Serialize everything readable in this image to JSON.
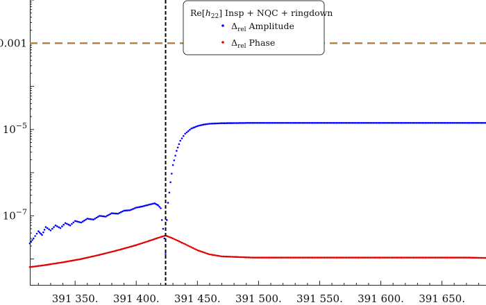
{
  "chart_data": {
    "type": "scatter",
    "y_scale": "log",
    "xlim": [
      391313,
      391686
    ],
    "ylim_exponent": [
      -8.6,
      -2.0
    ],
    "x_ticks": [
      {
        "value": 391350,
        "label": "391 350."
      },
      {
        "value": 391400,
        "label": "391 400."
      },
      {
        "value": 391450,
        "label": "391 450."
      },
      {
        "value": 391500,
        "label": "391 500."
      },
      {
        "value": 391550,
        "label": "391 550."
      },
      {
        "value": 391600,
        "label": "391 600."
      },
      {
        "value": 391650,
        "label": "391 650."
      }
    ],
    "y_ticks": [
      {
        "value": 0.001,
        "label_base": "0.001",
        "label_exp": ""
      },
      {
        "value": 1e-05,
        "label_base": "10",
        "label_exp": "−5"
      },
      {
        "value": 1e-07,
        "label_base": "10",
        "label_exp": "−7"
      }
    ],
    "reference_line": {
      "y": 0.001,
      "color": "#b07d3e",
      "style": "dashed"
    },
    "vertical_line": {
      "x": 391424,
      "color": "#000000",
      "style": "dashed"
    },
    "legend": {
      "title_prefix": "Re[",
      "title_h": "h",
      "title_sub": "22",
      "title_suffix": "]  Insp + NQC + ringdown",
      "placement": "top-center"
    },
    "series": [
      {
        "name_prefix": "Δ",
        "name_sub": "rel",
        "name_suffix": " Amplitude",
        "color": "#0000ff",
        "points": [
          [
            391313,
            2.3e-08
          ],
          [
            391316,
            3e-08
          ],
          [
            391320,
            4.4e-08
          ],
          [
            391323,
            3.6e-08
          ],
          [
            391326,
            5.5e-08
          ],
          [
            391330,
            4.6e-08
          ],
          [
            391334,
            6e-08
          ],
          [
            391338,
            5.2e-08
          ],
          [
            391342,
            6.8e-08
          ],
          [
            391346,
            6e-08
          ],
          [
            391350,
            7.6e-08
          ],
          [
            391355,
            7e-08
          ],
          [
            391360,
            8.6e-08
          ],
          [
            391365,
            8.2e-08
          ],
          [
            391370,
            1e-07
          ],
          [
            391375,
            9.6e-08
          ],
          [
            391380,
            1.15e-07
          ],
          [
            391385,
            1.12e-07
          ],
          [
            391390,
            1.32e-07
          ],
          [
            391395,
            1.35e-07
          ],
          [
            391400,
            1.55e-07
          ],
          [
            391405,
            1.65e-07
          ],
          [
            391410,
            1.8e-07
          ],
          [
            391415,
            1.95e-07
          ],
          [
            391418,
            1.75e-07
          ],
          [
            391420,
            1.5e-07
          ],
          [
            391421,
            8e-08
          ],
          [
            391422,
            5e-08
          ],
          [
            391423,
            3e-08
          ],
          [
            391424,
            1.3e-08
          ],
          [
            391425,
            8e-08
          ],
          [
            391426,
            2e-07
          ],
          [
            391428,
            6e-07
          ],
          [
            391430,
            1.5e-06
          ],
          [
            391433,
            3.2e-06
          ],
          [
            391436,
            5.5e-06
          ],
          [
            391440,
            8e-06
          ],
          [
            391445,
            1.05e-05
          ],
          [
            391450,
            1.2e-05
          ],
          [
            391455,
            1.3e-05
          ],
          [
            391460,
            1.36e-05
          ],
          [
            391470,
            1.4e-05
          ],
          [
            391490,
            1.42e-05
          ],
          [
            391520,
            1.42e-05
          ],
          [
            391560,
            1.42e-05
          ],
          [
            391600,
            1.42e-05
          ],
          [
            391640,
            1.42e-05
          ],
          [
            391686,
            1.42e-05
          ]
        ]
      },
      {
        "name_prefix": "Δ",
        "name_sub": "rel",
        "name_suffix": " Phase",
        "color": "#e00000",
        "points": [
          [
            391313,
            6.5e-09
          ],
          [
            391325,
            7.2e-09
          ],
          [
            391340,
            8.4e-09
          ],
          [
            391355,
            1e-08
          ],
          [
            391370,
            1.25e-08
          ],
          [
            391385,
            1.6e-08
          ],
          [
            391400,
            2.1e-08
          ],
          [
            391410,
            2.6e-08
          ],
          [
            391418,
            3.1e-08
          ],
          [
            391424,
            3.5e-08
          ],
          [
            391430,
            3e-08
          ],
          [
            391440,
            2.2e-08
          ],
          [
            391450,
            1.6e-08
          ],
          [
            391460,
            1.28e-08
          ],
          [
            391470,
            1.15e-08
          ],
          [
            391480,
            1.12e-08
          ],
          [
            391495,
            1.08e-08
          ],
          [
            391520,
            1.08e-08
          ],
          [
            391560,
            1.08e-08
          ],
          [
            391600,
            1.08e-08
          ],
          [
            391640,
            1.08e-08
          ],
          [
            391670,
            1.08e-08
          ],
          [
            391686,
            1.06e-08
          ]
        ]
      }
    ]
  }
}
